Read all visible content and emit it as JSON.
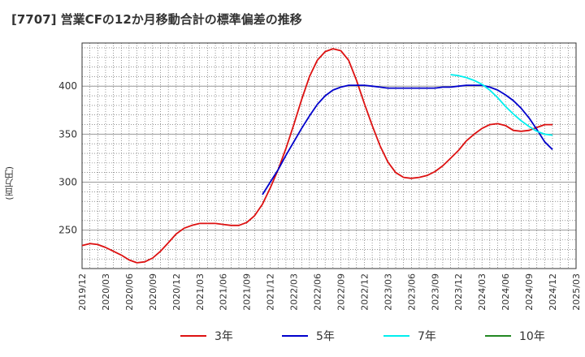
{
  "title": "[7707]  営業CFの12か月移動合計の標準偏差の推移",
  "y_unit": "(百万円)",
  "chart_data": {
    "type": "line",
    "title": "[7707]  営業CFの12か月移動合計の標準偏差の推移",
    "ylabel": "(百万円)",
    "xlabel": "",
    "ylim": [
      210,
      445
    ],
    "yticks": [
      250,
      300,
      350,
      400
    ],
    "xlim": [
      "2019-12",
      "2025-03"
    ],
    "xticks": [
      "2019/12",
      "2020/03",
      "2020/06",
      "2020/09",
      "2020/12",
      "2021/03",
      "2021/06",
      "2021/09",
      "2021/12",
      "2022/03",
      "2022/06",
      "2022/09",
      "2022/12",
      "2023/03",
      "2023/06",
      "2023/09",
      "2023/12",
      "2024/03",
      "2024/06",
      "2024/09",
      "2024/12",
      "2025/03"
    ],
    "grid": true,
    "legend_position": "bottom",
    "series": [
      {
        "name": "3年",
        "color": "#dd1111",
        "points": [
          [
            "2019-12",
            234
          ],
          [
            "2020-01",
            236
          ],
          [
            "2020-02",
            235
          ],
          [
            "2020-03",
            232
          ],
          [
            "2020-04",
            228
          ],
          [
            "2020-05",
            224
          ],
          [
            "2020-06",
            219
          ],
          [
            "2020-07",
            216
          ],
          [
            "2020-08",
            217
          ],
          [
            "2020-09",
            221
          ],
          [
            "2020-10",
            228
          ],
          [
            "2020-11",
            237
          ],
          [
            "2020-12",
            246
          ],
          [
            "2021-01",
            252
          ],
          [
            "2021-02",
            255
          ],
          [
            "2021-03",
            257
          ],
          [
            "2021-04",
            257
          ],
          [
            "2021-05",
            257
          ],
          [
            "2021-06",
            256
          ],
          [
            "2021-07",
            255
          ],
          [
            "2021-08",
            255
          ],
          [
            "2021-09",
            258
          ],
          [
            "2021-10",
            265
          ],
          [
            "2021-11",
            277
          ],
          [
            "2021-12",
            294
          ],
          [
            "2022-01",
            313
          ],
          [
            "2022-02",
            335
          ],
          [
            "2022-03",
            360
          ],
          [
            "2022-04",
            386
          ],
          [
            "2022-05",
            410
          ],
          [
            "2022-06",
            427
          ],
          [
            "2022-07",
            436
          ],
          [
            "2022-08",
            439
          ],
          [
            "2022-09",
            437
          ],
          [
            "2022-10",
            427
          ],
          [
            "2022-11",
            406
          ],
          [
            "2022-12",
            382
          ],
          [
            "2023-01",
            359
          ],
          [
            "2023-02",
            338
          ],
          [
            "2023-03",
            321
          ],
          [
            "2023-04",
            310
          ],
          [
            "2023-05",
            305
          ],
          [
            "2023-06",
            304
          ],
          [
            "2023-07",
            305
          ],
          [
            "2023-08",
            307
          ],
          [
            "2023-09",
            311
          ],
          [
            "2023-10",
            317
          ],
          [
            "2023-11",
            325
          ],
          [
            "2023-12",
            333
          ],
          [
            "2024-01",
            343
          ],
          [
            "2024-02",
            350
          ],
          [
            "2024-03",
            356
          ],
          [
            "2024-04",
            360
          ],
          [
            "2024-05",
            361
          ],
          [
            "2024-06",
            359
          ],
          [
            "2024-07",
            354
          ],
          [
            "2024-08",
            353
          ],
          [
            "2024-09",
            354
          ],
          [
            "2024-10",
            357
          ],
          [
            "2024-11",
            360
          ],
          [
            "2024-12",
            360
          ]
        ]
      },
      {
        "name": "5年",
        "color": "#0000cc",
        "points": [
          [
            "2021-11",
            287
          ],
          [
            "2021-12",
            300
          ],
          [
            "2022-01",
            313
          ],
          [
            "2022-02",
            328
          ],
          [
            "2022-03",
            342
          ],
          [
            "2022-04",
            356
          ],
          [
            "2022-05",
            369
          ],
          [
            "2022-06",
            381
          ],
          [
            "2022-07",
            390
          ],
          [
            "2022-08",
            396
          ],
          [
            "2022-09",
            399
          ],
          [
            "2022-10",
            401
          ],
          [
            "2022-11",
            401
          ],
          [
            "2022-12",
            401
          ],
          [
            "2023-01",
            400
          ],
          [
            "2023-02",
            399
          ],
          [
            "2023-03",
            398
          ],
          [
            "2023-04",
            398
          ],
          [
            "2023-05",
            398
          ],
          [
            "2023-06",
            398
          ],
          [
            "2023-07",
            398
          ],
          [
            "2023-08",
            398
          ],
          [
            "2023-09",
            398
          ],
          [
            "2023-10",
            399
          ],
          [
            "2023-11",
            399
          ],
          [
            "2023-12",
            400
          ],
          [
            "2024-01",
            401
          ],
          [
            "2024-02",
            401
          ],
          [
            "2024-03",
            401
          ],
          [
            "2024-04",
            399
          ],
          [
            "2024-05",
            396
          ],
          [
            "2024-06",
            391
          ],
          [
            "2024-07",
            385
          ],
          [
            "2024-08",
            377
          ],
          [
            "2024-09",
            367
          ],
          [
            "2024-10",
            355
          ],
          [
            "2024-11",
            342
          ],
          [
            "2024-12",
            334
          ]
        ]
      },
      {
        "name": "7年",
        "color": "#00eeee",
        "points": [
          [
            "2023-11",
            412
          ],
          [
            "2023-12",
            411
          ],
          [
            "2024-01",
            409
          ],
          [
            "2024-02",
            406
          ],
          [
            "2024-03",
            402
          ],
          [
            "2024-04",
            396
          ],
          [
            "2024-05",
            388
          ],
          [
            "2024-06",
            379
          ],
          [
            "2024-07",
            371
          ],
          [
            "2024-08",
            364
          ],
          [
            "2024-09",
            358
          ],
          [
            "2024-10",
            353
          ],
          [
            "2024-11",
            350
          ],
          [
            "2024-12",
            349
          ]
        ]
      },
      {
        "name": "10年",
        "color": "#228822",
        "points": []
      }
    ]
  }
}
